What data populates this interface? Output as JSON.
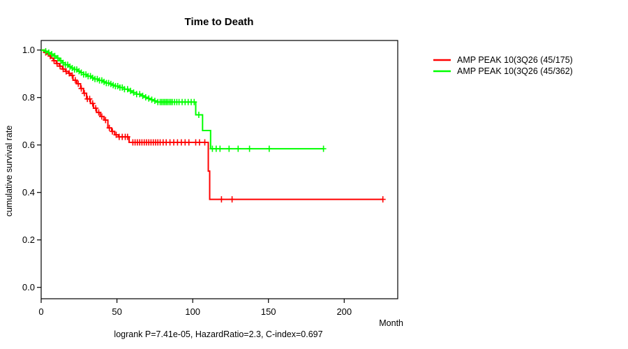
{
  "chart_data": {
    "type": "line",
    "subtype": "kaplan-meier-step",
    "title": "Time to Death",
    "xlabel": "Month",
    "ylabel": "cumulative survival rate",
    "annotation": "logrank P=7.41e-05, HazardRatio=2.3, C-index=0.697",
    "xlim": [
      0,
      235
    ],
    "ylim": [
      0,
      1.0
    ],
    "x_ticks": [
      0,
      50,
      100,
      150,
      200
    ],
    "x_tick_labels": [
      "0",
      "50",
      "100",
      "150",
      "200"
    ],
    "y_ticks": [
      0.0,
      0.2,
      0.4,
      0.6,
      0.8,
      1.0
    ],
    "y_tick_labels": [
      "0.0",
      "0.2",
      "0.4",
      "0.6",
      "0.8",
      "1.0"
    ],
    "grid": false,
    "legend_position": "right-outside",
    "axis_color": "#000000",
    "series": [
      {
        "name": "AMP PEAK 10(3Q26 (45/175)",
        "color": "#ff0000",
        "start": [
          0,
          1.0
        ],
        "end_time": 225.5,
        "steps": [
          [
            2,
            0.99
          ],
          [
            3.5,
            0.983
          ],
          [
            5,
            0.975
          ],
          [
            6.5,
            0.966
          ],
          [
            8,
            0.955
          ],
          [
            10,
            0.943
          ],
          [
            12,
            0.932
          ],
          [
            14,
            0.92
          ],
          [
            16,
            0.91
          ],
          [
            18,
            0.902
          ],
          [
            19.5,
            0.893
          ],
          [
            21,
            0.873
          ],
          [
            23.5,
            0.858
          ],
          [
            26,
            0.838
          ],
          [
            28,
            0.818
          ],
          [
            30,
            0.794
          ],
          [
            32.5,
            0.775
          ],
          [
            34.5,
            0.755
          ],
          [
            36.5,
            0.737
          ],
          [
            39,
            0.72
          ],
          [
            41.5,
            0.705
          ],
          [
            44,
            0.672
          ],
          [
            46.5,
            0.657
          ],
          [
            48.5,
            0.643
          ],
          [
            51,
            0.634
          ],
          [
            58,
            0.611
          ],
          [
            110.3,
            0.49
          ],
          [
            111.2,
            0.371
          ]
        ],
        "censor_times": [
          3,
          6,
          8.5,
          10.5,
          12.5,
          14.5,
          16.5,
          18.5,
          20.5,
          22.5,
          24.5,
          26.5,
          28.5,
          30.5,
          32,
          34,
          36,
          38,
          40,
          42.5,
          45,
          47,
          49.5,
          51.5,
          53.5,
          55.5,
          57,
          60.5,
          62,
          63.5,
          65,
          66.5,
          68,
          69.5,
          71,
          72.5,
          74,
          75.5,
          77,
          78.5,
          80.5,
          82.5,
          85,
          87.5,
          90,
          92.5,
          95,
          97.5,
          102,
          104.5,
          108,
          119,
          126,
          225.5
        ]
      },
      {
        "name": "AMP PEAK 10(3Q26 (45/362)",
        "color": "#00ff00",
        "start": [
          0,
          1.0
        ],
        "end_time": 186.3,
        "steps": [
          [
            2,
            0.995
          ],
          [
            4,
            0.989
          ],
          [
            6,
            0.983
          ],
          [
            8,
            0.975
          ],
          [
            10,
            0.966
          ],
          [
            12,
            0.955
          ],
          [
            14,
            0.946
          ],
          [
            16,
            0.938
          ],
          [
            18,
            0.93
          ],
          [
            20,
            0.924
          ],
          [
            22,
            0.918
          ],
          [
            24,
            0.911
          ],
          [
            26,
            0.905
          ],
          [
            28,
            0.897
          ],
          [
            30.5,
            0.89
          ],
          [
            33,
            0.883
          ],
          [
            35,
            0.878
          ],
          [
            38,
            0.872
          ],
          [
            41,
            0.866
          ],
          [
            43,
            0.861
          ],
          [
            45,
            0.857
          ],
          [
            47,
            0.852
          ],
          [
            49,
            0.848
          ],
          [
            52,
            0.842
          ],
          [
            55,
            0.835
          ],
          [
            57.5,
            0.828
          ],
          [
            60,
            0.821
          ],
          [
            63,
            0.814
          ],
          [
            66,
            0.807
          ],
          [
            68,
            0.801
          ],
          [
            70,
            0.796
          ],
          [
            72,
            0.791
          ],
          [
            74,
            0.786
          ],
          [
            76,
            0.781
          ],
          [
            102,
            0.727
          ],
          [
            106.5,
            0.661
          ],
          [
            111.8,
            0.584
          ]
        ],
        "censor_times": [
          3,
          5,
          7,
          9,
          11,
          13,
          14.5,
          16,
          17.5,
          19,
          20.5,
          22,
          23.5,
          25,
          26.5,
          28,
          29.5,
          31,
          32.5,
          34,
          35.5,
          37,
          38.5,
          40,
          41.5,
          43,
          44.5,
          46,
          47.5,
          49,
          50.5,
          52,
          53.5,
          55,
          57,
          59,
          61,
          63,
          65,
          67,
          69,
          71,
          73,
          75,
          77,
          78.5,
          79.5,
          80.5,
          81.5,
          82.5,
          83.5,
          84.5,
          85.5,
          86.5,
          88,
          89.5,
          91,
          93,
          95,
          97,
          99,
          101,
          104,
          113,
          115.5,
          118,
          124,
          130,
          137.5,
          150.5,
          186.3
        ]
      }
    ]
  }
}
